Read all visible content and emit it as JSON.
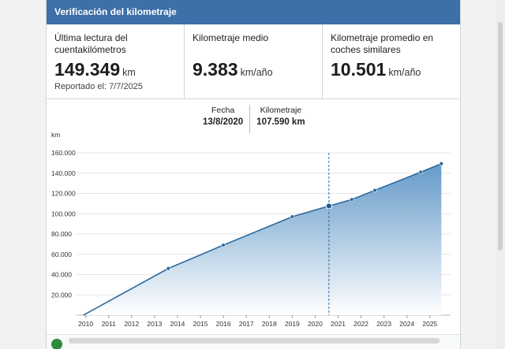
{
  "header": {
    "title": "Verificación del kilometraje"
  },
  "stats": [
    {
      "label": "Última lectura del cuentakilómetros",
      "value": "149.349",
      "unit": "km",
      "sub": "Reportado el: 7/7/2025"
    },
    {
      "label": "Kilometraje medio",
      "value": "9.383",
      "unit": "km/año",
      "sub": ""
    },
    {
      "label": "Kilometraje promedio en coches similares",
      "value": "10.501",
      "unit": "km/año",
      "sub": ""
    }
  ],
  "readout": {
    "date_label": "Fecha",
    "date_value": "13/8/2020",
    "km_label": "Kilometraje",
    "km_value": "107.590 km"
  },
  "colors": {
    "header": "#3d6fa8",
    "line": "#2f6aa0",
    "fill_top": "#5d95c6",
    "fill_bottom": "#ffffff"
  },
  "chart_data": {
    "type": "area",
    "title": "",
    "ylabel": "km",
    "xlabel": "",
    "ylim": [
      0,
      160000
    ],
    "xlim": [
      2009.6,
      2025.9
    ],
    "yticks": [
      20000,
      40000,
      60000,
      80000,
      100000,
      120000,
      140000,
      160000
    ],
    "ytick_labels": [
      "20.000",
      "40.000",
      "60.000",
      "80.000",
      "100.000",
      "120.000",
      "140.000",
      "160.000"
    ],
    "xticks": [
      2010,
      2011,
      2012,
      2013,
      2014,
      2015,
      2016,
      2017,
      2018,
      2019,
      2020,
      2021,
      2022,
      2023,
      2024,
      2025
    ],
    "xtick_labels": [
      "2010",
      "2011",
      "2012",
      "2013",
      "2014",
      "2015",
      "2016",
      "2017",
      "2018",
      "2019",
      "2020",
      "2021",
      "2022",
      "2023",
      "2024",
      "2025"
    ],
    "series": [
      {
        "name": "Kilometraje",
        "x": [
          2009.9,
          2013.6,
          2016.0,
          2019.0,
          2020.6,
          2021.6,
          2022.6,
          2024.6,
          2025.5
        ],
        "y": [
          0,
          46000,
          69000,
          97000,
          107590,
          114000,
          123000,
          141000,
          149349
        ]
      }
    ],
    "highlight": {
      "x": 2020.6,
      "y": 107590
    }
  }
}
